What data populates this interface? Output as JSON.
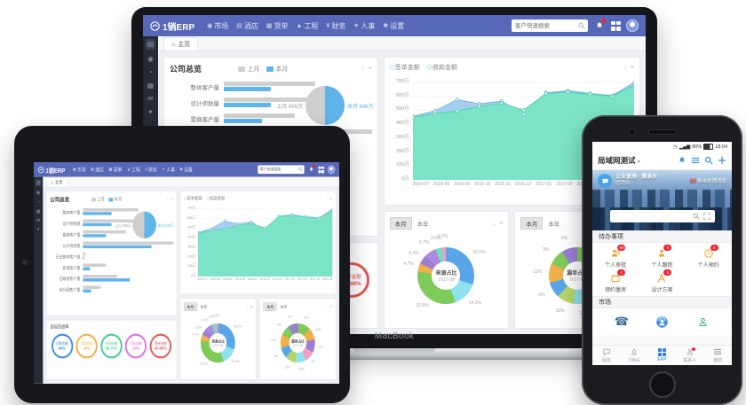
{
  "devices": {
    "macbook_label": "MacBook"
  },
  "dashboard": {
    "nav": {
      "logo": "1销ERP",
      "items": [
        {
          "icon": "◉",
          "label": "市场"
        },
        {
          "icon": "▤",
          "label": "酒店"
        },
        {
          "icon": "▦",
          "label": "货单"
        },
        {
          "icon": "▲",
          "label": "工程"
        },
        {
          "icon": "¥",
          "label": "财务"
        },
        {
          "icon": "✦",
          "label": "人事"
        },
        {
          "icon": "✱",
          "label": "设置"
        }
      ],
      "search_placeholder": "客户快速搜索"
    },
    "tab_home": "主页",
    "toggles": {
      "month": "本月",
      "year": "本年"
    },
    "overview": {
      "title": "公司总览",
      "legend_last": "上月",
      "legend_this": "本月",
      "bar_chart": {
        "type": "bar",
        "categories": [
          "整体客户量",
          "设计师数量",
          "置换客户量",
          "公外资源量",
          "已出整体客户量",
          "新增客户量",
          "已跟进客户量",
          "待分配客户量"
        ],
        "series": [
          {
            "name": "上月",
            "values": [
              62,
              63,
              48,
              100,
              3,
              26,
              38,
              20
            ]
          },
          {
            "name": "本月",
            "values": [
              32,
              32,
              26,
              76,
              1,
              8,
              52,
              9
            ]
          }
        ],
        "xlim": [
          0,
          100
        ]
      },
      "pie": {
        "type": "pie",
        "left_label": "上月 656万",
        "right_label": "本月 646万",
        "values": [
          50,
          50
        ]
      }
    },
    "trend": {
      "legend": [
        "签单金额",
        "收款金额"
      ],
      "chart": {
        "type": "area",
        "x": [
          "2016-07",
          "2016-08",
          "2016-09",
          "2016-10",
          "2016-11",
          "2016-12",
          "2017-01",
          "2017-02",
          "2017-03",
          "2017-04",
          "2017-05"
        ],
        "series": [
          {
            "name": "签单金额",
            "values": [
              455,
              495,
              575,
              545,
              565,
              470,
              625,
              640,
              620,
              605,
              700
            ]
          },
          {
            "name": "收款金额",
            "values": [
              450,
              475,
              495,
              525,
              550,
              500,
              620,
              630,
              615,
              600,
              680
            ]
          }
        ],
        "y_ticks": [
          "0万",
          "100万",
          "200万",
          "300万",
          "400万",
          "500万",
          "600万",
          "700万"
        ],
        "ylim": [
          0,
          750
        ]
      }
    },
    "source_panel": {
      "title": "来源占比",
      "subtitle": "2017-08",
      "chart": {
        "type": "pie"
      },
      "slices": [
        {
          "value": 30.2,
          "color": "#59a5e8"
        },
        {
          "value": 14.3,
          "color": "#8ee3ef"
        },
        {
          "value": 32.8,
          "color": "#7ecb5a"
        },
        {
          "value": 4.7,
          "color": "#f2b04a"
        },
        {
          "value": 5.3,
          "color": "#9b7fd4"
        },
        {
          "value": 6.7,
          "color": "#b08ae0"
        },
        {
          "value": 3.5,
          "color": "#6ee0c2"
        },
        {
          "value": 2.5,
          "color": "#f0a0c8"
        }
      ]
    },
    "loss_panel": {
      "title": "漏单占比",
      "subtitle": "2017-08",
      "chart": {
        "type": "pie"
      },
      "slices": [
        {
          "value": 12,
          "color": "#7ecb5a"
        },
        {
          "value": 10,
          "color": "#f2b04a"
        },
        {
          "value": 11,
          "color": "#9b7fd4"
        },
        {
          "value": 9,
          "color": "#f0a0c8"
        },
        {
          "value": 10,
          "color": "#8ee3ef"
        },
        {
          "value": 10,
          "color": "#b5d46a"
        },
        {
          "value": 9,
          "color": "#59a5e8"
        },
        {
          "value": 11,
          "color": "#f2b04a"
        },
        {
          "value": 9,
          "color": "#7ecb5a"
        },
        {
          "value": 9,
          "color": "#9b7fd4"
        }
      ]
    },
    "rings_panel": {
      "title": "目标完成率",
      "rings": [
        {
          "label": "回款金额",
          "value": "88%",
          "color": "#3a8ee6"
        },
        {
          "label": "内部目标",
          "value": "39%",
          "color": "#f2b04a"
        },
        {
          "label": "合同金额",
          "value": "56.75%",
          "color": "#3ecf8e"
        },
        {
          "label": "目标金额",
          "value": "23%",
          "color": "#e06ee0"
        },
        {
          "label": "签单金额",
          "value": "43.88%",
          "color": "#e85656"
        }
      ]
    }
  },
  "phone": {
    "status": {
      "battery": "80%",
      "time": "18:04"
    },
    "header": {
      "title": "局域网测试"
    },
    "profile": {
      "line1": "企业管理 - 董事长",
      "line2": "管理员",
      "msg_count": "60",
      "msg_text": "条未处理消息"
    },
    "sections": {
      "todo": "待办事项",
      "market": "市场"
    },
    "todo_items": [
      {
        "label": "个人审批",
        "badge": "99"
      },
      {
        "label": "个人跟踪",
        "badge": "8"
      },
      {
        "label": "个人预约",
        "badge": "9"
      },
      {
        "label": "预约量房",
        "badge": "4"
      },
      {
        "label": "设计方案",
        "badge": "6"
      }
    ],
    "tabbar": [
      {
        "label": "消息"
      },
      {
        "label": "DING"
      },
      {
        "label": "ERP"
      },
      {
        "label": "联系人"
      },
      {
        "label": "我的"
      }
    ]
  }
}
